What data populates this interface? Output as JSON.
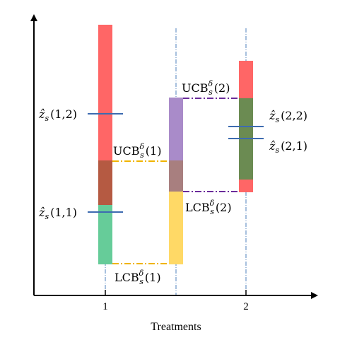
{
  "colors": {
    "red": "#ff6666",
    "green": "#66cc99",
    "overlap_dark": "#b55a42",
    "purple": "#a98bc9",
    "yellow": "#ffd966",
    "overlap_mauve": "#a87f7f",
    "olive": "#6b8b52",
    "ucb1_line": "#f0b400",
    "ucb2_line": "#6a2b9a",
    "estimate_line": "#3d6bb0",
    "guide_line": "#4f81bd"
  },
  "x_axis": {
    "title": "Treatments",
    "ticks": [
      "1",
      "2"
    ]
  },
  "labels": {
    "z11": {
      "hat": "ẑ",
      "sub": "s",
      "args": "(1,1)"
    },
    "z12": {
      "hat": "ẑ",
      "sub": "s",
      "args": "(1,2)"
    },
    "z21": {
      "hat": "ẑ",
      "sub": "s",
      "args": "(2,1)"
    },
    "z22": {
      "hat": "ẑ",
      "sub": "s",
      "args": "(2,2)"
    },
    "ucb1": {
      "base": "UCB",
      "sup": "δ",
      "sub": "s",
      "args": "(1)"
    },
    "lcb1": {
      "base": "LCB",
      "sup": "δ",
      "sub": "s",
      "args": "(1)"
    },
    "ucb2": {
      "base": "UCB",
      "sup": "δ",
      "sub": "s",
      "args": "(2)"
    },
    "lcb2": {
      "base": "LCB",
      "sup": "δ",
      "sub": "s",
      "args": "(2)"
    }
  }
}
